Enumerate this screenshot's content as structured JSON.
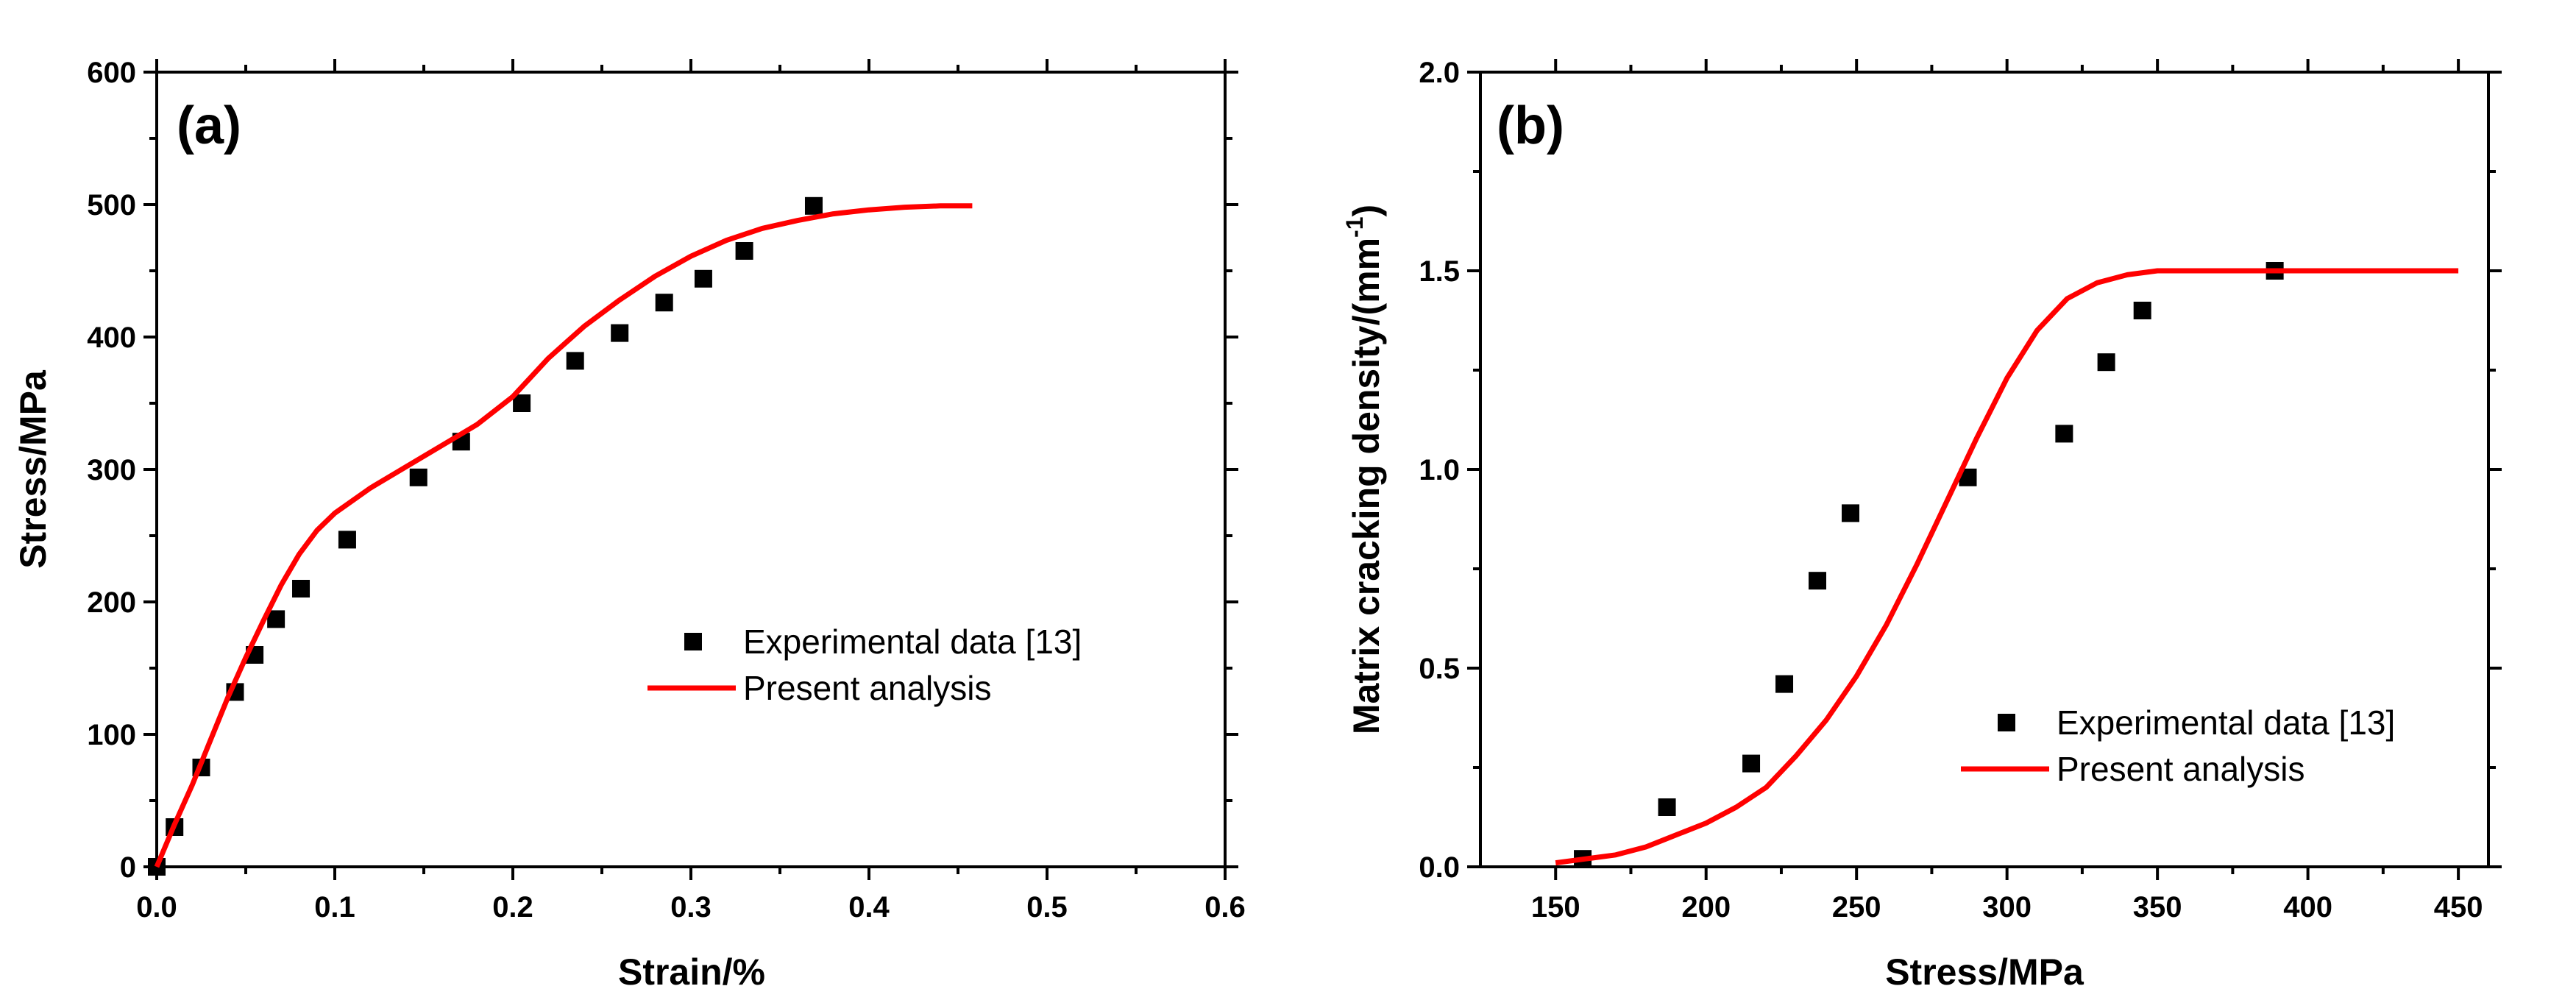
{
  "chart_data": [
    {
      "type": "scatter",
      "panel_label": "(a)",
      "xlabel": "Strain/%",
      "ylabel": "Stress/MPa",
      "xlim": [
        0,
        0.6
      ],
      "ylim": [
        0,
        600
      ],
      "xticks": [
        0.0,
        0.1,
        0.2,
        0.3,
        0.4,
        0.5,
        0.6
      ],
      "xtick_labels": [
        "0.0",
        "0.1",
        "0.2",
        "0.3",
        "0.4",
        "0.5",
        "0.6"
      ],
      "yticks": [
        0,
        100,
        200,
        300,
        400,
        500,
        600
      ],
      "ytick_labels": [
        "0",
        "100",
        "200",
        "300",
        "400",
        "500",
        "600"
      ],
      "legend_position": "center-right",
      "series": [
        {
          "name": "Experimental data [13]",
          "kind": "scatter",
          "color": "#000000",
          "x": [
            0.0,
            0.01,
            0.025,
            0.044,
            0.055,
            0.067,
            0.081,
            0.107,
            0.147,
            0.171,
            0.205,
            0.235,
            0.26,
            0.285,
            0.307,
            0.33,
            0.369
          ],
          "y": [
            0,
            30,
            75,
            132,
            160,
            187,
            210,
            247,
            294,
            321,
            350,
            382,
            403,
            426,
            444,
            465,
            499
          ]
        },
        {
          "name": "Present analysis",
          "kind": "line",
          "color": "#ff0000",
          "x": [
            0.0,
            0.01,
            0.02,
            0.03,
            0.04,
            0.05,
            0.06,
            0.07,
            0.08,
            0.09,
            0.1,
            0.12,
            0.14,
            0.16,
            0.18,
            0.2,
            0.22,
            0.24,
            0.26,
            0.28,
            0.3,
            0.32,
            0.34,
            0.36,
            0.38,
            0.4,
            0.42,
            0.44,
            0.458
          ],
          "y": [
            0,
            32,
            62,
            95,
            128,
            158,
            186,
            213,
            236,
            254,
            267,
            286,
            302,
            318,
            334,
            355,
            384,
            408,
            428,
            446,
            461,
            473,
            482,
            488,
            493,
            496,
            498,
            499,
            499
          ]
        }
      ]
    },
    {
      "type": "scatter",
      "panel_label": "(b)",
      "xlabel": "Stress/MPa",
      "ylabel": "Matrix cracking density/(mm",
      "ylabel_superscript": "-1",
      "ylabel_suffix": ")",
      "xlim": [
        125,
        460
      ],
      "ylim": [
        0,
        2.0
      ],
      "xticks": [
        150,
        200,
        250,
        300,
        350,
        400,
        450
      ],
      "xtick_labels": [
        "150",
        "200",
        "250",
        "300",
        "350",
        "400",
        "450"
      ],
      "yticks": [
        0,
        0.5,
        1.0,
        1.5,
        2.0
      ],
      "ytick_labels": [
        "0.0",
        "0.5",
        "1.0",
        "1.5",
        "2.0"
      ],
      "legend_position": "lower-right",
      "series": [
        {
          "name": "Experimental data [13]",
          "kind": "scatter",
          "color": "#000000",
          "x": [
            159,
            187,
            215,
            226,
            237,
            248,
            287,
            319,
            333,
            345,
            389
          ],
          "y": [
            0.02,
            0.15,
            0.26,
            0.46,
            0.72,
            0.89,
            0.98,
            1.09,
            1.27,
            1.4,
            1.5
          ]
        },
        {
          "name": "Present analysis",
          "kind": "line",
          "color": "#ff0000",
          "x": [
            150,
            160,
            170,
            180,
            190,
            200,
            210,
            220,
            230,
            240,
            250,
            260,
            270,
            280,
            290,
            300,
            310,
            320,
            330,
            340,
            350,
            360,
            380,
            400,
            450
          ],
          "y": [
            0.01,
            0.02,
            0.03,
            0.05,
            0.08,
            0.11,
            0.15,
            0.2,
            0.28,
            0.37,
            0.48,
            0.61,
            0.76,
            0.92,
            1.08,
            1.23,
            1.35,
            1.43,
            1.47,
            1.49,
            1.5,
            1.5,
            1.5,
            1.5,
            1.5
          ]
        }
      ]
    }
  ]
}
